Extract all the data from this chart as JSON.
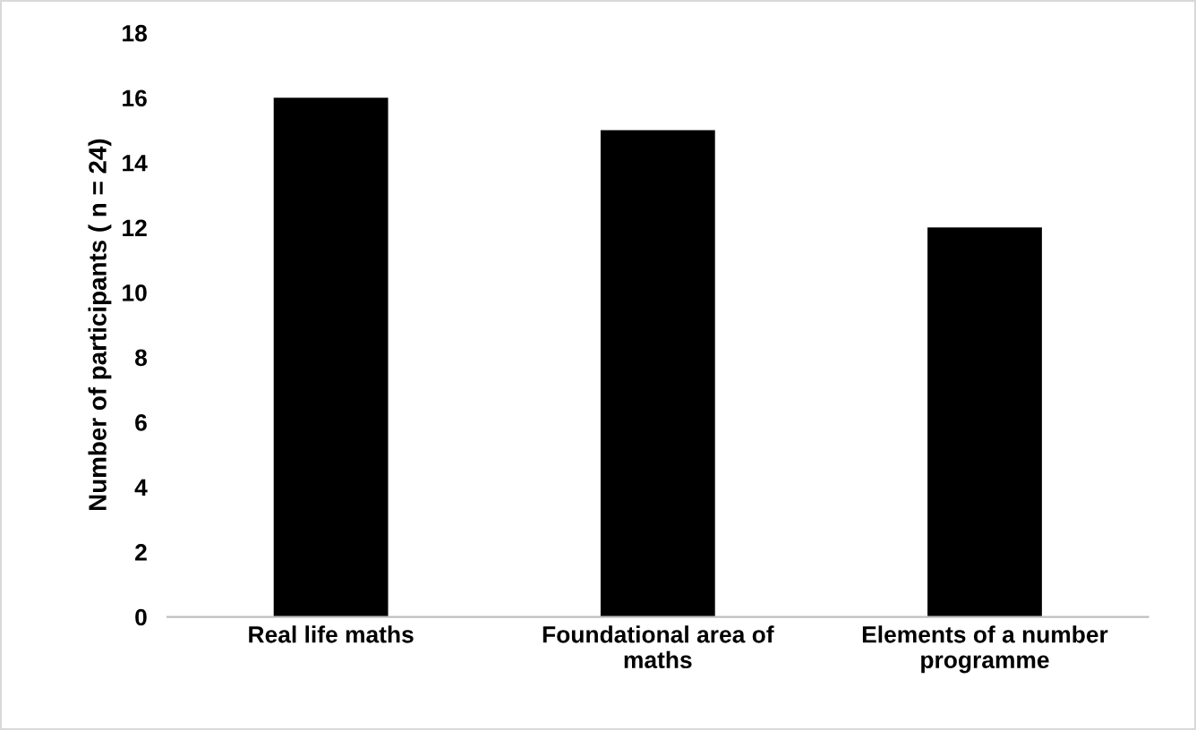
{
  "chart_data": {
    "type": "bar",
    "ylabel": "Number of participants ( n = 24)",
    "categories": [
      "Real life maths",
      "Foundational area of maths",
      "Elements of a number programme"
    ],
    "values": [
      16,
      15,
      12
    ],
    "color": "#000000",
    "ylim": [
      0,
      18
    ],
    "yticks": [
      0,
      2,
      4,
      6,
      8,
      10,
      12,
      14,
      16,
      18
    ],
    "grid": false
  }
}
